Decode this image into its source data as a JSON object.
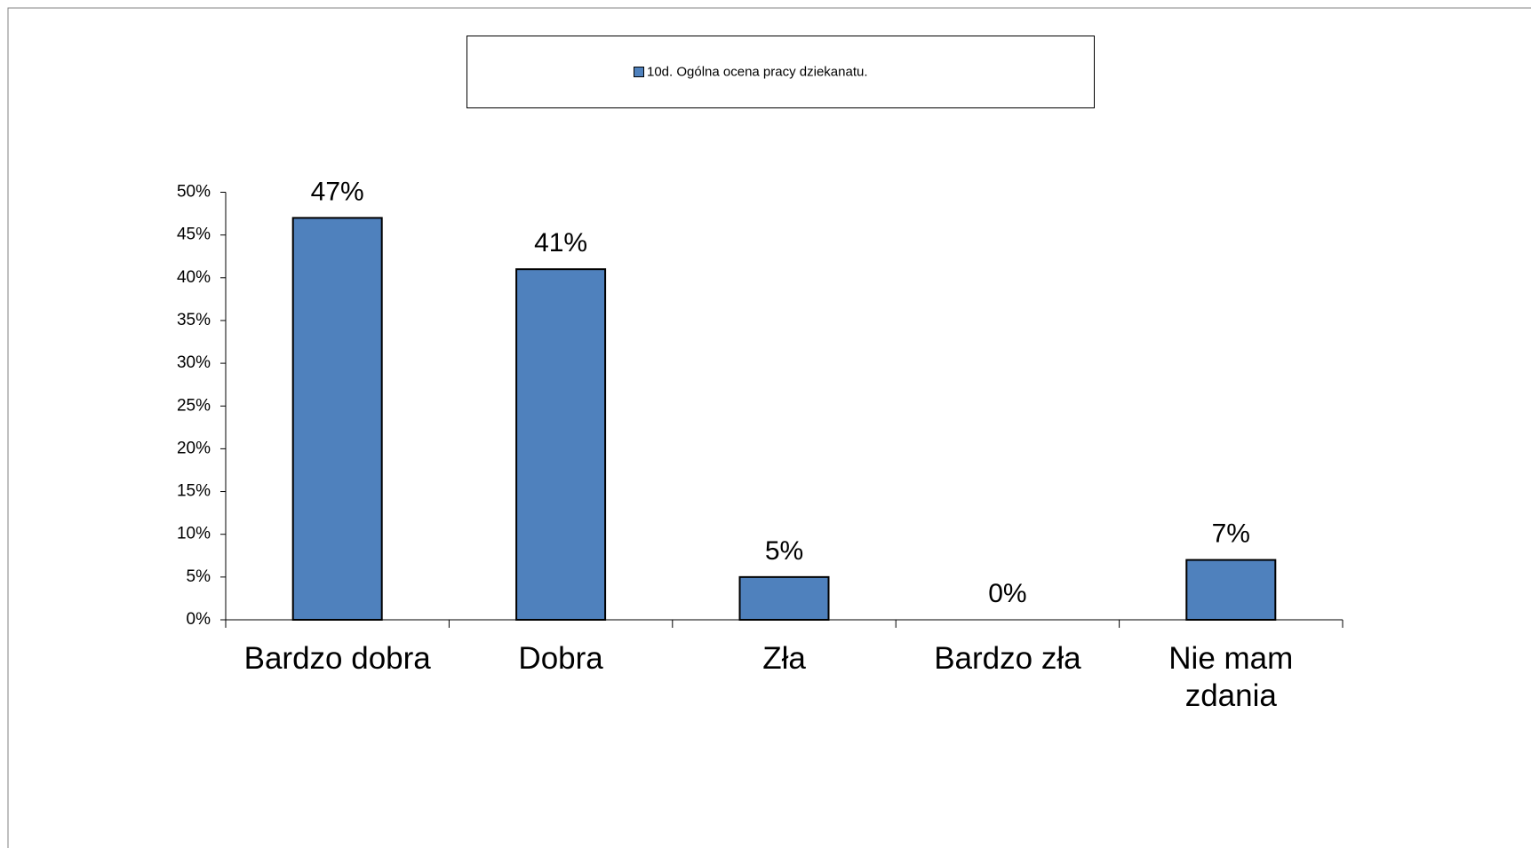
{
  "chart_data": {
    "type": "bar",
    "legend": "10d. Ogólna ocena pracy dziekanatu.",
    "categories": [
      "Bardzo dobra",
      "Dobra",
      "Zła",
      "Bardzo zła",
      "Nie mam zdania"
    ],
    "values": [
      47,
      41,
      5,
      0,
      7
    ],
    "value_labels": [
      "47%",
      "41%",
      "5%",
      "0%",
      "7%"
    ],
    "color": "#4f81bd",
    "ylim": [
      0,
      50
    ],
    "yticks": [
      {
        "value": 0,
        "label": "0%"
      },
      {
        "value": 5,
        "label": "5%"
      },
      {
        "value": 10,
        "label": "10%"
      },
      {
        "value": 15,
        "label": "15%"
      },
      {
        "value": 20,
        "label": "20%"
      },
      {
        "value": 25,
        "label": "25%"
      },
      {
        "value": 30,
        "label": "30%"
      },
      {
        "value": 35,
        "label": "35%"
      },
      {
        "value": 40,
        "label": "40%"
      },
      {
        "value": 45,
        "label": "45%"
      },
      {
        "value": 50,
        "label": "50%"
      }
    ],
    "grid": false
  }
}
